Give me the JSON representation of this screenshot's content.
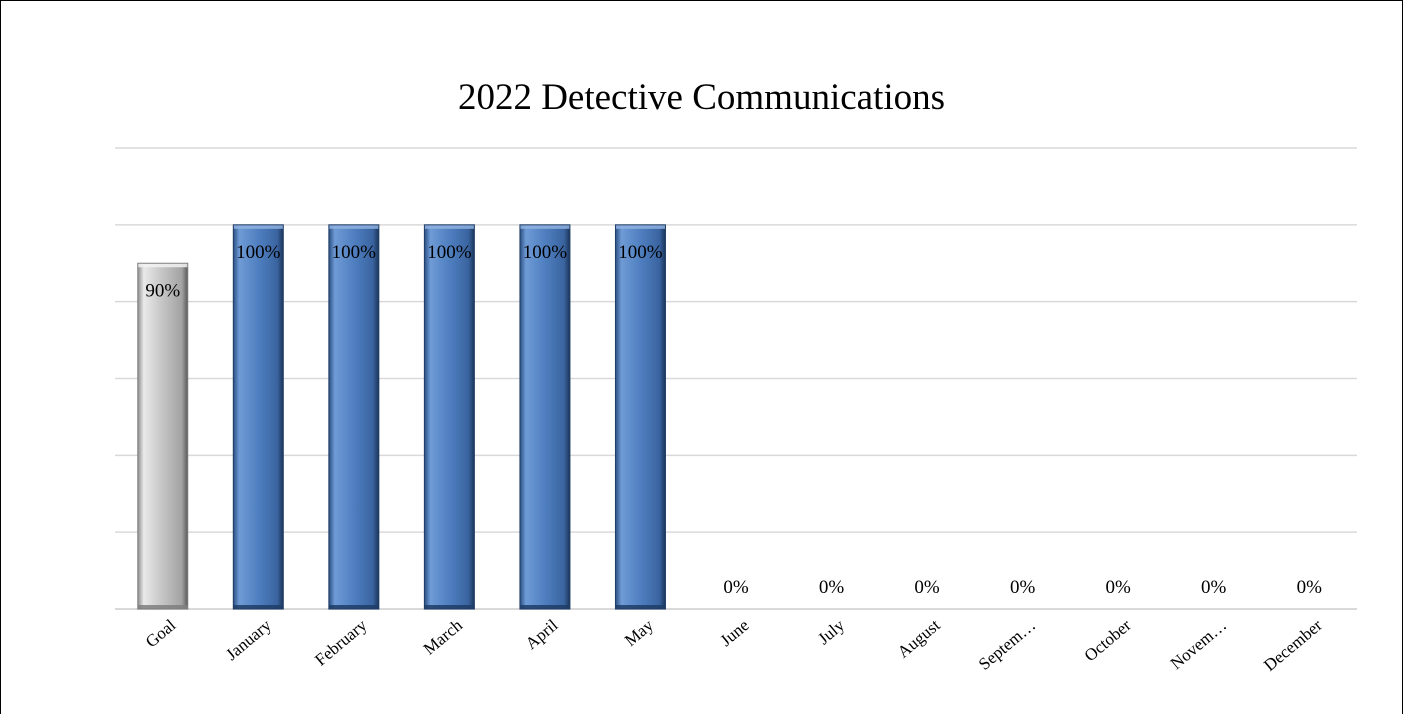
{
  "chart_data": {
    "type": "bar",
    "title": "2022 Detective Communications",
    "xlabel": "",
    "ylabel": "",
    "ylim": [
      0,
      1.2
    ],
    "grid": true,
    "categories": [
      "Goal",
      "January",
      "February",
      "March",
      "April",
      "May",
      "June",
      "July",
      "August",
      "Septem…",
      "October",
      "Novem…",
      "December"
    ],
    "values": [
      0.9,
      1.0,
      1.0,
      1.0,
      1.0,
      1.0,
      0,
      0,
      0,
      0,
      0,
      0,
      0
    ],
    "data_labels": [
      "90%",
      "100%",
      "100%",
      "100%",
      "100%",
      "100%",
      "0%",
      "0%",
      "0%",
      "0%",
      "0%",
      "0%",
      "0%"
    ],
    "colors": {
      "goal_bar": "#bfbfbf",
      "month_bar": "#4f81bd",
      "gridline": "#d9d9d9"
    }
  }
}
